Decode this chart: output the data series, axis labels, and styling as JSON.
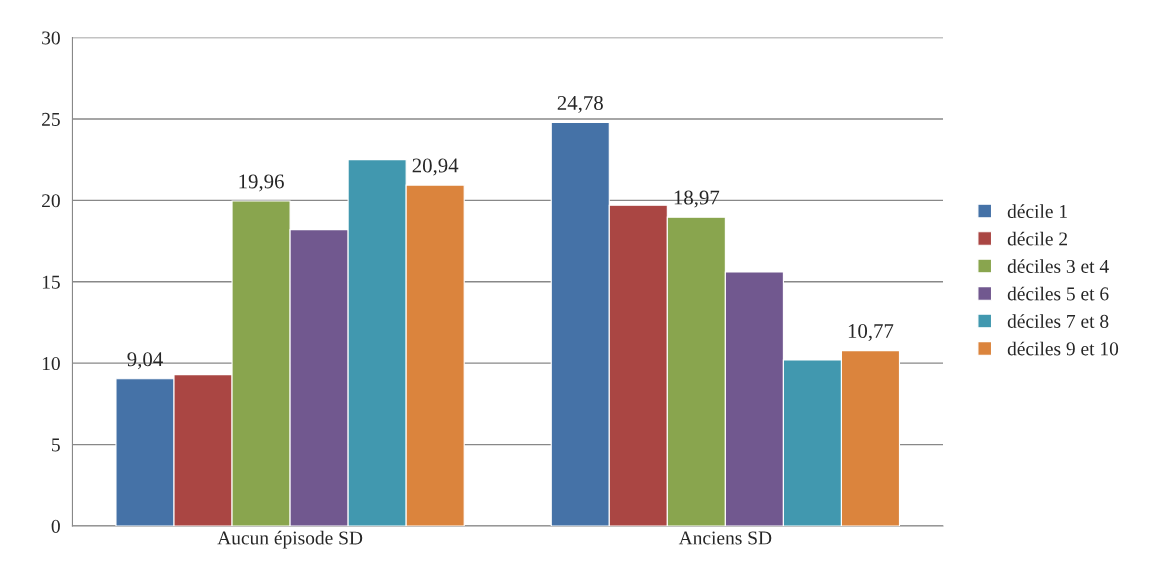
{
  "chart_data": {
    "type": "bar",
    "categories": [
      "Aucun épisode SD",
      "Anciens SD"
    ],
    "series": [
      {
        "name": "décile 1",
        "color": "#4572a7",
        "values": [
          9.04,
          24.78
        ],
        "value_labels": [
          "9,04",
          "24,78"
        ]
      },
      {
        "name": "décile 2",
        "color": "#aa4643",
        "values": [
          9.3,
          19.7
        ],
        "value_labels": [
          null,
          null
        ]
      },
      {
        "name": "déciles 3 et 4",
        "color": "#89a54e",
        "values": [
          19.96,
          18.97
        ],
        "value_labels": [
          "19,96",
          "18,97"
        ]
      },
      {
        "name": "déciles 5 et 6",
        "color": "#71588f",
        "values": [
          18.2,
          15.6
        ],
        "value_labels": [
          null,
          null
        ]
      },
      {
        "name": "déciles 7 et 8",
        "color": "#4198af",
        "values": [
          22.5,
          10.2
        ],
        "value_labels": [
          null,
          null
        ]
      },
      {
        "name": "déciles 9 et 10",
        "color": "#db843d",
        "values": [
          20.94,
          10.77
        ],
        "value_labels": [
          "20,94",
          "10,77"
        ]
      }
    ],
    "ylim": [
      0,
      30
    ],
    "yticks": [
      0,
      5,
      10,
      15,
      20,
      25,
      30
    ],
    "grid": "y",
    "legend": "right"
  }
}
